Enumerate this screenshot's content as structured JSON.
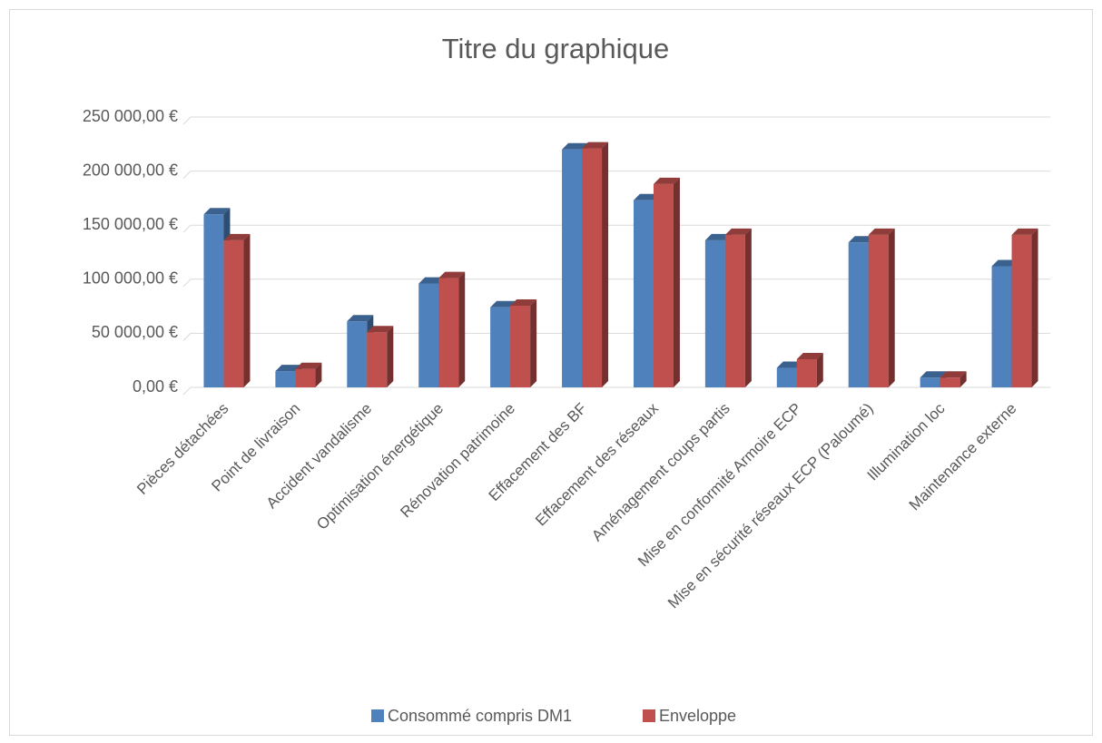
{
  "chart_data": {
    "type": "bar3d",
    "title": "Titre du graphique",
    "categories": [
      "Pièces détachées",
      "Point de livraison",
      "Accident vandalisme",
      "Optimisation énergétique",
      "Rénovation patrimoine",
      "Effacement des BF",
      "Effacement des réseaux",
      "Aménagement coups partis",
      "Mise en conformité Armoire ECP",
      "Mise en sécurité réseaux ECP (Paloumé)",
      "Illumination loc",
      "Maintenance externe"
    ],
    "series": [
      {
        "name": "Consommé compris DM1",
        "color": "#4f81bd",
        "values": [
          160000,
          15000,
          61000,
          96000,
          74000,
          220000,
          173000,
          136000,
          18000,
          134000,
          9000,
          112000
        ]
      },
      {
        "name": "Enveloppe",
        "color": "#c0504d",
        "values": [
          136000,
          17000,
          51000,
          101000,
          75500,
          221000,
          188000,
          141000,
          26000,
          141000,
          9000,
          141000
        ]
      }
    ],
    "ylim": [
      0,
      250000
    ],
    "yticks": [
      {
        "value": 0,
        "label": "0,00 €"
      },
      {
        "value": 50000,
        "label": "50 000,00 €"
      },
      {
        "value": 100000,
        "label": "100 000,00 €"
      },
      {
        "value": 150000,
        "label": "150 000,00 €"
      },
      {
        "value": 200000,
        "label": "200 000,00 €"
      },
      {
        "value": 250000,
        "label": "250 000,00 €"
      }
    ],
    "grid": true,
    "legend": "bottom"
  }
}
